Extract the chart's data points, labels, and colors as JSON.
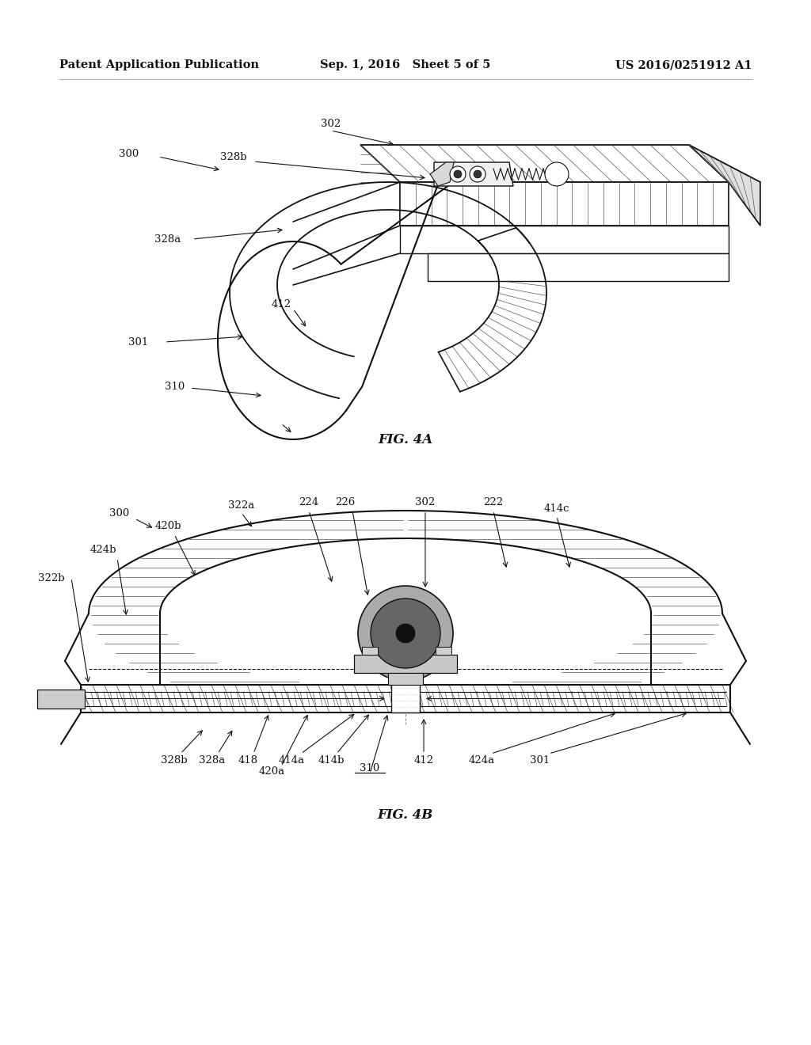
{
  "background_color": "#ffffff",
  "header_left": "Patent Application Publication",
  "header_mid": "Sep. 1, 2016   Sheet 5 of 5",
  "header_right": "US 2016/0251912 A1",
  "header_fontsize": 10.5,
  "fig4a_caption": "FIG. 4A",
  "fig4b_caption": "FIG. 4B",
  "line_color": "#111111",
  "hatch_color": "#555555"
}
